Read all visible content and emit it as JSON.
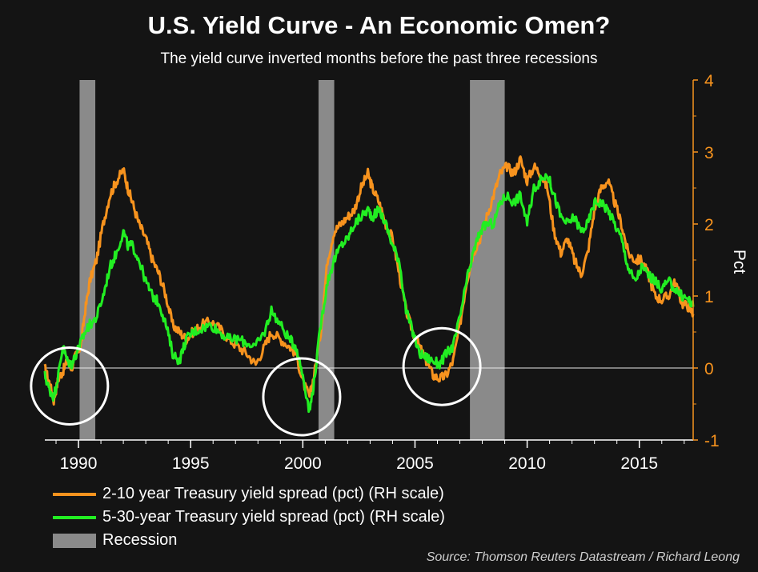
{
  "chart_data": {
    "type": "line",
    "title": "U.S. Yield Curve - An Economic Omen?",
    "subtitle": "The yield curve inverted months before the past three recessions",
    "ylabel": "Pct",
    "xlim": [
      1989.0,
      2017.9
    ],
    "ylim": [
      -1,
      4
    ],
    "x_ticks": [
      "1990",
      "1995",
      "2000",
      "2005",
      "2010",
      "2015"
    ],
    "y_ticks": [
      "4",
      "3",
      "2",
      "1",
      "0",
      "-1"
    ],
    "y_axis_side": "right",
    "y_axis_color": "#f7931e",
    "legend_position": "bottom-left",
    "source": "Source: Thomson Reuters Datastream / Richard Leong",
    "recessions": [
      {
        "start": 1990.55,
        "end": 1991.25
      },
      {
        "start": 2001.2,
        "end": 2001.9
      },
      {
        "start": 2007.95,
        "end": 2009.5
      }
    ],
    "inversion_circles": [
      {
        "x": 1990.1,
        "y": -0.25
      },
      {
        "x": 2000.45,
        "y": -0.4
      },
      {
        "x": 2006.7,
        "y": 0.02
      }
    ],
    "series": [
      {
        "name": "2-10 year Treasury yield spread (pct) (RH scale)",
        "color": "#f7931e",
        "x": [
          1989.0,
          1989.2,
          1989.4,
          1989.6,
          1989.8,
          1990.0,
          1990.2,
          1990.4,
          1990.6,
          1990.8,
          1991.0,
          1991.3,
          1991.6,
          1991.9,
          1992.2,
          1992.5,
          1992.7,
          1992.9,
          1993.2,
          1993.5,
          1993.8,
          1994.1,
          1994.4,
          1994.7,
          1995.0,
          1995.3,
          1995.6,
          1996.0,
          1996.4,
          1996.8,
          1997.2,
          1997.6,
          1998.0,
          1998.4,
          1998.8,
          1999.1,
          1999.5,
          1999.9,
          2000.2,
          2000.5,
          2000.8,
          2001.0,
          2001.3,
          2001.6,
          2001.9,
          2002.2,
          2002.5,
          2002.8,
          2003.1,
          2003.4,
          2003.6,
          2003.9,
          2004.2,
          2004.5,
          2004.8,
          2005.1,
          2005.4,
          2005.7,
          2006.0,
          2006.3,
          2006.6,
          2006.9,
          2007.2,
          2007.5,
          2007.8,
          2008.1,
          2008.4,
          2008.7,
          2009.0,
          2009.3,
          2009.6,
          2009.9,
          2010.2,
          2010.5,
          2010.8,
          2011.1,
          2011.4,
          2011.7,
          2012.0,
          2012.3,
          2012.6,
          2012.9,
          2013.2,
          2013.5,
          2013.8,
          2014.1,
          2014.4,
          2014.7,
          2015.0,
          2015.3,
          2015.6,
          2015.9,
          2016.2,
          2016.5,
          2016.8,
          2017.1,
          2017.4,
          2017.7,
          2017.9
        ],
        "y": [
          0.0,
          -0.2,
          -0.45,
          -0.15,
          -0.05,
          0.1,
          0.0,
          0.2,
          0.3,
          0.8,
          1.2,
          1.5,
          2.0,
          2.4,
          2.6,
          2.75,
          2.5,
          2.3,
          2.0,
          1.8,
          1.5,
          1.3,
          1.0,
          0.6,
          0.5,
          0.4,
          0.5,
          0.6,
          0.65,
          0.55,
          0.4,
          0.3,
          0.2,
          0.05,
          0.3,
          0.5,
          0.4,
          0.3,
          0.2,
          -0.2,
          -0.4,
          -0.1,
          0.5,
          1.5,
          1.9,
          2.0,
          2.1,
          2.2,
          2.5,
          2.7,
          2.5,
          2.3,
          2.0,
          1.8,
          1.3,
          0.8,
          0.5,
          0.3,
          0.1,
          -0.1,
          -0.15,
          -0.1,
          0.1,
          0.6,
          1.2,
          1.6,
          1.8,
          2.1,
          2.4,
          2.7,
          2.8,
          2.7,
          2.9,
          2.6,
          2.8,
          2.7,
          2.5,
          1.9,
          1.6,
          1.8,
          1.5,
          1.3,
          1.6,
          2.2,
          2.5,
          2.6,
          2.3,
          2.0,
          1.6,
          1.5,
          1.5,
          1.3,
          1.0,
          0.95,
          1.0,
          1.2,
          0.9,
          0.85,
          0.75
        ]
      },
      {
        "name": "5-30-year Treasury yield spread (pct) (RH scale)",
        "color": "#22ee22",
        "x": [
          1989.0,
          1989.2,
          1989.4,
          1989.6,
          1989.8,
          1990.0,
          1990.2,
          1990.4,
          1990.6,
          1990.8,
          1991.0,
          1991.3,
          1991.6,
          1991.9,
          1992.2,
          1992.5,
          1992.7,
          1992.9,
          1993.2,
          1993.5,
          1993.8,
          1994.1,
          1994.4,
          1994.7,
          1995.0,
          1995.3,
          1995.6,
          1996.0,
          1996.4,
          1996.8,
          1997.2,
          1997.6,
          1998.0,
          1998.4,
          1998.8,
          1999.1,
          1999.5,
          1999.9,
          2000.2,
          2000.5,
          2000.8,
          2001.0,
          2001.3,
          2001.6,
          2001.9,
          2002.2,
          2002.5,
          2002.8,
          2003.1,
          2003.4,
          2003.6,
          2003.9,
          2004.2,
          2004.5,
          2004.8,
          2005.1,
          2005.4,
          2005.7,
          2006.0,
          2006.3,
          2006.6,
          2006.9,
          2007.2,
          2007.5,
          2007.8,
          2008.1,
          2008.4,
          2008.7,
          2009.0,
          2009.3,
          2009.6,
          2009.9,
          2010.2,
          2010.5,
          2010.8,
          2011.1,
          2011.4,
          2011.7,
          2012.0,
          2012.3,
          2012.6,
          2012.9,
          2013.2,
          2013.5,
          2013.8,
          2014.1,
          2014.4,
          2014.7,
          2015.0,
          2015.3,
          2015.6,
          2015.9,
          2016.2,
          2016.5,
          2016.8,
          2017.1,
          2017.4,
          2017.7,
          2017.9
        ],
        "y": [
          -0.1,
          -0.3,
          -0.4,
          -0.1,
          0.3,
          0.1,
          0.05,
          0.2,
          0.35,
          0.5,
          0.6,
          0.7,
          1.0,
          1.4,
          1.6,
          1.9,
          1.7,
          1.7,
          1.5,
          1.2,
          1.0,
          0.9,
          0.6,
          0.2,
          0.1,
          0.4,
          0.5,
          0.55,
          0.6,
          0.5,
          0.4,
          0.4,
          0.35,
          0.3,
          0.5,
          0.8,
          0.6,
          0.4,
          0.3,
          -0.1,
          -0.6,
          -0.2,
          0.6,
          1.2,
          1.5,
          1.7,
          1.8,
          2.0,
          2.1,
          2.2,
          2.1,
          2.2,
          2.0,
          1.7,
          1.5,
          0.8,
          0.5,
          0.2,
          0.15,
          0.1,
          0.05,
          0.2,
          0.3,
          0.7,
          1.2,
          1.6,
          1.9,
          2.0,
          2.0,
          2.3,
          2.4,
          2.3,
          2.4,
          2.0,
          2.5,
          2.6,
          2.7,
          2.4,
          2.1,
          2.0,
          2.1,
          1.9,
          2.0,
          2.3,
          2.3,
          2.2,
          2.0,
          1.8,
          1.4,
          1.2,
          1.4,
          1.3,
          1.2,
          1.1,
          1.2,
          1.1,
          1.0,
          0.95,
          0.85
        ]
      }
    ]
  },
  "legend": {
    "recession_label": "Recession",
    "recession_color": "#8a8a8a"
  }
}
